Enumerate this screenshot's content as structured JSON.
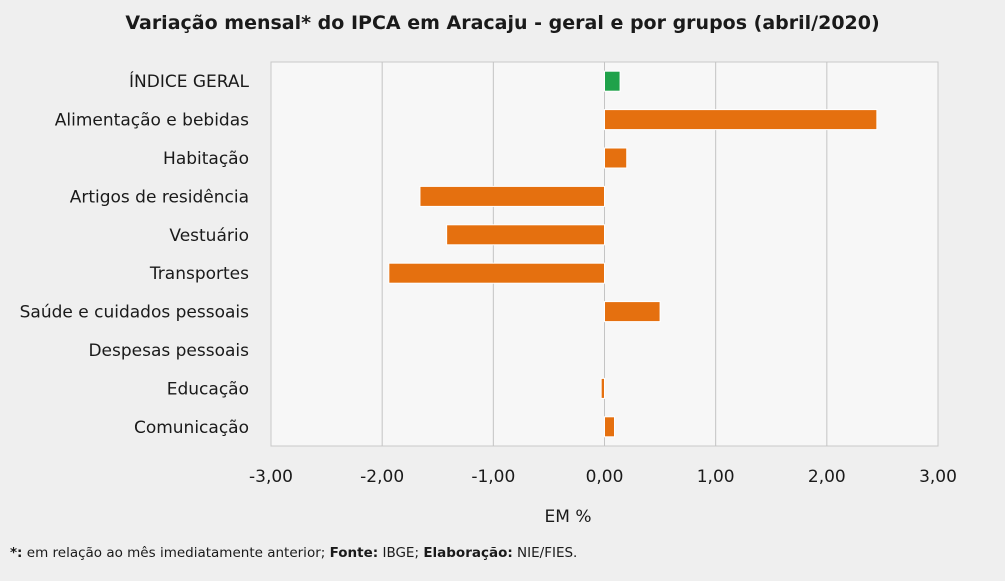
{
  "chart_data": {
    "type": "bar",
    "orientation": "horizontal",
    "title": "Variação  mensal*  do  IPCA  em  Aracaju   - geral  e  por  grupos  (abril/2020)",
    "xlabel": "EM %",
    "ylabel": "",
    "xlim": [
      -3,
      3
    ],
    "xticks": [
      -3,
      -2,
      -1,
      0,
      1,
      2,
      3
    ],
    "xtick_labels": [
      "-3,00",
      "-2,00",
      "-1,00",
      "0,00",
      "1,00",
      "2,00",
      "3,00"
    ],
    "grid": true,
    "categories": [
      "ÍNDICE GERAL",
      "Alimentação e bebidas",
      "Habitação",
      "Artigos de residência",
      "Vestuário",
      "Transportes",
      "Saúde e cuidados pessoais",
      "Despesas pessoais",
      "Educação",
      "Comunicação"
    ],
    "values": [
      0.14,
      2.45,
      0.2,
      -1.66,
      -1.42,
      -1.94,
      0.5,
      0.0,
      -0.03,
      0.09
    ],
    "colors": [
      "#1fa24a",
      "#e5700f",
      "#e5700f",
      "#e5700f",
      "#e5700f",
      "#e5700f",
      "#e5700f",
      "#e5700f",
      "#e5700f",
      "#e5700f"
    ]
  },
  "footnote": {
    "star_label": "*:",
    "star_text": " em relação ao mês imediatamente  anterior; ",
    "source_label": "Fonte:",
    "source_text": " IBGE; ",
    "elab_label": "Elaboração:",
    "elab_text": " NIE/FIES."
  }
}
